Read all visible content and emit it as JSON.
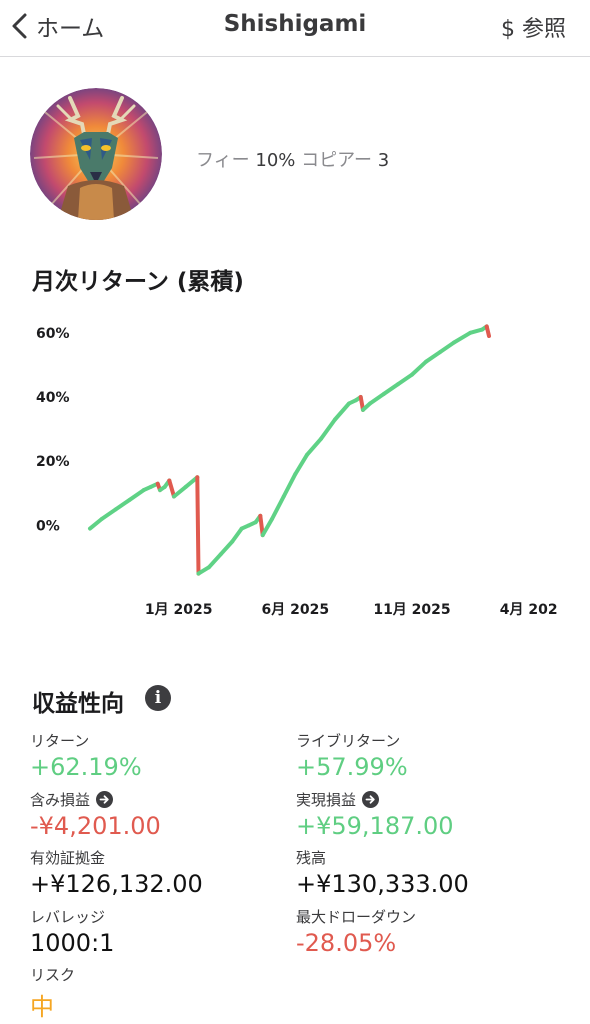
{
  "header": {
    "back_label": "ホーム",
    "title": "Shishigami",
    "ref_label": "$ 参照"
  },
  "profile": {
    "fee_label": "フィー",
    "fee_value": "10%",
    "copiers_label": "コピアー",
    "copiers_value": "3"
  },
  "chart_section": {
    "title": "月次リターン (累積)"
  },
  "chart_data": {
    "type": "line",
    "title": "月次リターン (累積)",
    "xlabel": "",
    "ylabel": "",
    "y_ticks": [
      "60%",
      "40%",
      "20%",
      "0%"
    ],
    "y_tick_values": [
      60,
      40,
      20,
      0
    ],
    "x_ticks": [
      "1月 2025",
      "6月 2025",
      "11月 2025",
      "4月 202"
    ],
    "x_tick_values": [
      0,
      5,
      10,
      15
    ],
    "xlim": [
      -3.8,
      17.2
    ],
    "ylim": [
      -17,
      64
    ],
    "grid": false,
    "legend": "none",
    "colors": {
      "up": "#5fd286",
      "down": "#e05a4f"
    },
    "series": [
      {
        "values": [
          [
            -3.8,
            -1
          ],
          [
            -3.3,
            2
          ],
          [
            -2.7,
            5
          ],
          [
            -2.1,
            8
          ],
          [
            -1.5,
            11
          ],
          [
            -1.2,
            12
          ],
          [
            -0.9,
            13
          ],
          [
            -0.8,
            11
          ],
          [
            -0.6,
            12
          ],
          [
            -0.4,
            14
          ],
          [
            -0.2,
            9
          ],
          [
            0.3,
            12
          ],
          [
            0.8,
            15
          ],
          [
            0.85,
            -15
          ],
          [
            1.3,
            -13
          ],
          [
            1.8,
            -9
          ],
          [
            2.3,
            -5
          ],
          [
            2.7,
            -1
          ],
          [
            3.0,
            0
          ],
          [
            3.3,
            1
          ],
          [
            3.5,
            3
          ],
          [
            3.6,
            -3
          ],
          [
            4.0,
            2
          ],
          [
            4.5,
            9
          ],
          [
            5.0,
            16
          ],
          [
            5.5,
            22
          ],
          [
            6.1,
            27
          ],
          [
            6.7,
            33
          ],
          [
            7.3,
            38
          ],
          [
            7.6,
            39
          ],
          [
            7.8,
            40
          ],
          [
            7.9,
            36
          ],
          [
            8.2,
            38
          ],
          [
            8.8,
            41
          ],
          [
            9.4,
            44
          ],
          [
            10.0,
            47
          ],
          [
            10.6,
            51
          ],
          [
            11.2,
            54
          ],
          [
            11.8,
            57
          ],
          [
            12.5,
            60
          ],
          [
            13.0,
            61
          ],
          [
            13.2,
            62
          ],
          [
            13.3,
            59
          ]
        ]
      }
    ]
  },
  "stats": {
    "title": "収益性向",
    "info_icon": "info-icon",
    "items": [
      {
        "label": "リターン",
        "value": "+62.19%",
        "color": "green"
      },
      {
        "label": "ライブリターン",
        "value": "+57.99%",
        "color": "green"
      },
      {
        "label": "含み損益",
        "value": "-¥4,201.00",
        "color": "red"
      },
      {
        "label": "実現損益",
        "value": "+¥59,187.00",
        "color": "green"
      },
      {
        "label": "有効証拠金",
        "value": "+¥126,132.00",
        "color": "black"
      },
      {
        "label": "残高",
        "value": "+¥130,333.00",
        "color": "black"
      },
      {
        "label": "レバレッジ",
        "value": "1000:1",
        "color": "black"
      },
      {
        "label": "最大ドローダウン",
        "value": "-28.05%",
        "color": "red"
      },
      {
        "label": "リスク",
        "value": "中",
        "color": "orange"
      }
    ]
  }
}
